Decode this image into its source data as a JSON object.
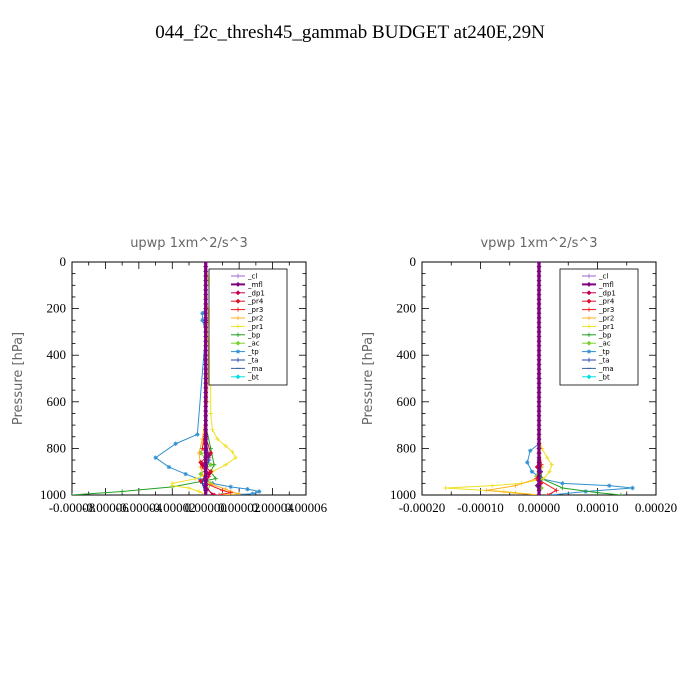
{
  "title": "044_f2c_thresh45_gammab  BUDGET at240E,29N",
  "legend_items": [
    {
      "label": "_cl",
      "color": "#9966cc",
      "marker": "cross"
    },
    {
      "label": "_mfl",
      "color": "#800080",
      "marker": "diamond"
    },
    {
      "label": "_dp1",
      "color": "#c0004f",
      "marker": "diamond"
    },
    {
      "label": "_pr4",
      "color": "#e0102a",
      "marker": "diamond"
    },
    {
      "label": "_pr3",
      "color": "#f01818",
      "marker": "cross"
    },
    {
      "label": "_pr2",
      "color": "#ffb020",
      "marker": "cross"
    },
    {
      "label": "_pr1",
      "color": "#f0e020",
      "marker": "cross"
    },
    {
      "label": "_bp",
      "color": "#22a022",
      "marker": "cross"
    },
    {
      "label": "_ac",
      "color": "#7cd030",
      "marker": "diamond"
    },
    {
      "label": "_tp",
      "color": "#3090d0",
      "marker": "star"
    },
    {
      "label": "_ta",
      "color": "#2040b0",
      "marker": "cross"
    },
    {
      "label": "_ma",
      "color": "#4060a0",
      "marker": "dash"
    },
    {
      "label": "_bt",
      "color": "#00e0e0",
      "marker": "diamond"
    }
  ],
  "chart_data": [
    {
      "type": "line",
      "title": "upwp   1xm^2/s^3",
      "ylabel": "Pressure [hPa]",
      "xlim": [
        -8e-05,
        6e-05
      ],
      "ylim": [
        1000,
        0
      ],
      "y_reversed": true,
      "xticks": [
        -8e-05,
        -6e-05,
        -4e-05,
        -2e-05,
        0.0,
        2e-05,
        4e-05,
        6e-05
      ],
      "xtick_labels": [
        "-0.00008",
        "-0.00006",
        "-0.00004",
        "-0.00002",
        "0.00000",
        "0.00002",
        "0.00004",
        "0.00006"
      ],
      "yticks": [
        0,
        200,
        400,
        600,
        800,
        1000
      ],
      "ytick_labels": [
        "0",
        "200",
        "400",
        "600",
        "800",
        "1000"
      ],
      "legend": "top-right",
      "series": [
        {
          "name": "_cl",
          "x": [
            0,
            0,
            0,
            0,
            0
          ],
          "y": [
            0,
            250,
            500,
            750,
            1000
          ]
        },
        {
          "name": "_mfl",
          "x": [
            0,
            0,
            0,
            0,
            0
          ],
          "y": [
            0,
            250,
            500,
            750,
            1000
          ]
        },
        {
          "name": "_pr1",
          "x": [
            0,
            2e-06,
            3e-06,
            2e-06,
            1e-06,
            3e-06,
            3e-06,
            4e-06,
            7e-06,
            1.2e-05,
            1.6e-05,
            1.8e-05,
            1.2e-05,
            4e-06,
            -6e-06,
            -2e-05,
            -2e-05,
            -1e-05,
            -4e-06,
            0
          ],
          "y": [
            0,
            100,
            150,
            200,
            300,
            500,
            650,
            720,
            760,
            790,
            815,
            840,
            870,
            900,
            930,
            950,
            960,
            970,
            985,
            1000
          ]
        },
        {
          "name": "_pr2",
          "x": [
            0,
            0,
            2e-06,
            4e-06,
            2e-06,
            1e-06,
            -2e-06,
            -4e-06,
            -3e-06,
            -1e-06,
            4e-06,
            1.2e-05,
            1.5e-05,
            2e-05,
            1e-05
          ],
          "y": [
            0,
            150,
            230,
            260,
            300,
            600,
            760,
            820,
            880,
            930,
            955,
            975,
            985,
            995,
            1000
          ]
        },
        {
          "name": "_pr3",
          "x": [
            0,
            0,
            -2e-06,
            2e-06,
            -2e-06,
            2e-06,
            0,
            1e-05,
            1.5e-05,
            8e-06
          ],
          "y": [
            0,
            700,
            800,
            840,
            880,
            920,
            950,
            980,
            990,
            1000
          ]
        },
        {
          "name": "_pr4",
          "x": [
            0,
            0,
            3e-06,
            -3e-06,
            3e-06,
            -3e-06,
            0,
            5e-06
          ],
          "y": [
            0,
            750,
            820,
            860,
            900,
            940,
            970,
            1000
          ]
        },
        {
          "name": "_dp1",
          "x": [
            0,
            0,
            2e-06,
            -2e-06,
            2e-06,
            0,
            4e-06
          ],
          "y": [
            0,
            780,
            830,
            870,
            910,
            960,
            1000
          ]
        },
        {
          "name": "_bp",
          "x": [
            0,
            0,
            3e-06,
            5e-06,
            3e-06,
            6e-06,
            -2e-05,
            -5e-05,
            -8e-05
          ],
          "y": [
            0,
            700,
            800,
            870,
            900,
            930,
            965,
            985,
            1000
          ]
        },
        {
          "name": "_ac",
          "x": [
            0,
            0,
            -3e-06,
            3e-06,
            -3e-06,
            3e-06,
            0
          ],
          "y": [
            0,
            750,
            820,
            870,
            910,
            950,
            1000
          ]
        },
        {
          "name": "_tp",
          "x": [
            0,
            0,
            -2e-06,
            -2e-06,
            0,
            -5e-06,
            -1.8e-05,
            -3e-05,
            -2.2e-05,
            -1.2e-05,
            -3e-06,
            4e-06,
            1.5e-05,
            2.5e-05,
            3.2e-05,
            2.8e-05,
            1e-05
          ],
          "y": [
            0,
            200,
            220,
            250,
            300,
            740,
            780,
            840,
            880,
            910,
            935,
            950,
            965,
            975,
            985,
            995,
            1000
          ]
        },
        {
          "name": "_ta",
          "x": [
            0,
            0,
            2e-06,
            -2e-06,
            0
          ],
          "y": [
            0,
            750,
            850,
            950,
            1000
          ]
        },
        {
          "name": "_ma",
          "x": [
            0,
            0,
            0
          ],
          "y": [
            0,
            500,
            1000
          ]
        },
        {
          "name": "_bt",
          "x": [
            0,
            0,
            0
          ],
          "y": [
            0,
            500,
            1000
          ]
        }
      ]
    },
    {
      "type": "line",
      "title": "vpwp   1xm^2/s^3",
      "ylabel": "Pressure [hPa]",
      "xlim": [
        -0.0002,
        0.0002
      ],
      "ylim": [
        1000,
        0
      ],
      "y_reversed": true,
      "xticks": [
        -0.0002,
        -0.0001,
        0.0,
        0.0001,
        0.0002
      ],
      "xtick_labels": [
        "-0.00020",
        "-0.00010",
        "0.00000",
        "0.00010",
        "0.00020"
      ],
      "yticks": [
        0,
        200,
        400,
        600,
        800,
        1000
      ],
      "ytick_labels": [
        "0",
        "200",
        "400",
        "600",
        "800",
        "1000"
      ],
      "legend": "top-right",
      "series": [
        {
          "name": "_cl",
          "x": [
            0,
            0,
            0
          ],
          "y": [
            0,
            500,
            1000
          ]
        },
        {
          "name": "_mfl",
          "x": [
            0,
            0,
            0
          ],
          "y": [
            0,
            500,
            1000
          ]
        },
        {
          "name": "_pr1",
          "x": [
            0,
            0,
            5e-06,
            1.4e-05,
            2.2e-05,
            1.8e-05,
            8e-06,
            -3e-05,
            -8e-05,
            -0.00016,
            -6e-05,
            0
          ],
          "y": [
            0,
            750,
            800,
            840,
            870,
            900,
            930,
            950,
            960,
            970,
            985,
            1000
          ]
        },
        {
          "name": "_pr2",
          "x": [
            0,
            0,
            5e-06,
            -5e-06,
            -4e-05,
            -9e-05,
            -4e-05,
            0
          ],
          "y": [
            0,
            800,
            880,
            930,
            960,
            980,
            992,
            1000
          ]
        },
        {
          "name": "_pr3",
          "x": [
            0,
            0,
            4e-06,
            -4e-06,
            3e-05,
            1.5e-05
          ],
          "y": [
            0,
            800,
            870,
            930,
            980,
            1000
          ]
        },
        {
          "name": "_pr4",
          "x": [
            0,
            0,
            -3e-06,
            3e-06,
            0
          ],
          "y": [
            0,
            800,
            880,
            950,
            1000
          ]
        },
        {
          "name": "_dp1",
          "x": [
            0,
            0,
            3e-06,
            -3e-06,
            0
          ],
          "y": [
            0,
            820,
            900,
            960,
            1000
          ]
        },
        {
          "name": "_bp",
          "x": [
            0,
            0,
            5e-06,
            4e-05,
            0.0001,
            0.00014
          ],
          "y": [
            0,
            850,
            930,
            970,
            990,
            1000
          ]
        },
        {
          "name": "_ac",
          "x": [
            0,
            0,
            -4e-06,
            4e-06,
            0
          ],
          "y": [
            0,
            850,
            920,
            970,
            1000
          ]
        },
        {
          "name": "_tp",
          "x": [
            0,
            0,
            -1.5e-05,
            -2e-05,
            -1.2e-05,
            4e-06,
            4e-05,
            0.00012,
            0.00016,
            8e-05,
            2e-05
          ],
          "y": [
            0,
            780,
            810,
            860,
            900,
            930,
            950,
            960,
            970,
            985,
            1000
          ]
        },
        {
          "name": "_ta",
          "x": [
            0,
            0,
            3e-06,
            -3e-06,
            0
          ],
          "y": [
            0,
            800,
            900,
            960,
            1000
          ]
        },
        {
          "name": "_ma",
          "x": [
            0,
            0,
            0
          ],
          "y": [
            0,
            500,
            1000
          ]
        },
        {
          "name": "_bt",
          "x": [
            0,
            0,
            0
          ],
          "y": [
            0,
            500,
            1000
          ]
        }
      ]
    }
  ]
}
